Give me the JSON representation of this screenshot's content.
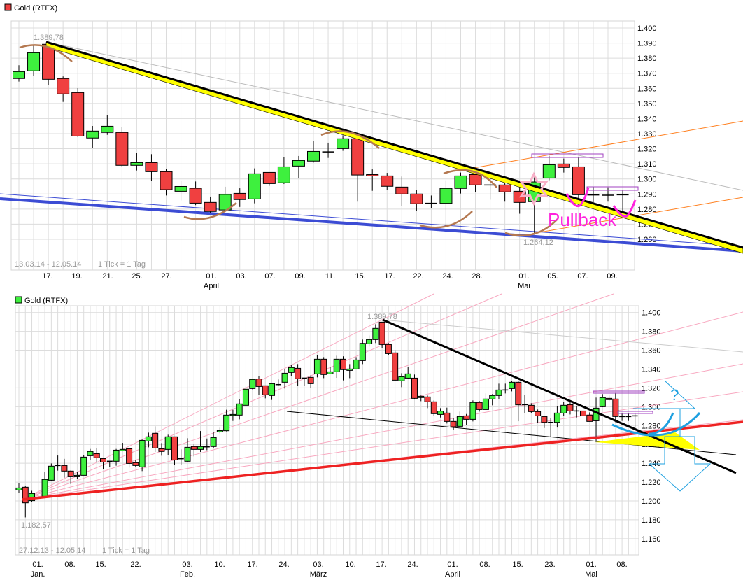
{
  "chart_data": [
    {
      "type": "candlestick",
      "title": "Gold (RTFX)",
      "legend_color": "#f04040",
      "range_note": "13.03.14 - 12.05.14",
      "tick_note": "1 Tick = 1 Tag",
      "ylim": [
        1.255,
        1.405
      ],
      "yticks": [
        "1.400",
        "1.390",
        "1.380",
        "1.370",
        "1.360",
        "1.350",
        "1.340",
        "1.330",
        "1.320",
        "1.310",
        "1.300",
        "1.290",
        "1.280",
        "1.270",
        "1.260"
      ],
      "xticks": [
        "17.",
        "19.",
        "21.",
        "25.",
        "27.",
        "01.",
        "03.",
        "07.",
        "09.",
        "11.",
        "15.",
        "17.",
        "22.",
        "24.",
        "28.",
        "01.",
        "05.",
        "07.",
        "09."
      ],
      "xmonths": [
        "April",
        "Mai"
      ],
      "annotations": {
        "high": "1.389,78",
        "low": "1.264,12",
        "text": "Pullback"
      },
      "colors": {
        "up": "#3ef03e",
        "down": "#f04040",
        "trend": "#000000",
        "band": "#ffff00",
        "support": "#3c4cd4",
        "channel": "#ff7f1e",
        "arcs": "#b47850",
        "marker": "#ff22dd"
      },
      "ohlc": [
        [
          1.3665,
          1.3753,
          1.3645,
          1.3711
        ],
        [
          1.3716,
          1.3884,
          1.3682,
          1.3836
        ],
        [
          1.3892,
          1.3898,
          1.3621,
          1.366
        ],
        [
          1.3665,
          1.3679,
          1.351,
          1.3563
        ],
        [
          1.3572,
          1.3601,
          1.3278,
          1.3284
        ],
        [
          1.3271,
          1.3351,
          1.3204,
          1.3317
        ],
        [
          1.3308,
          1.3425,
          1.3292,
          1.3349
        ],
        [
          1.3308,
          1.3346,
          1.3079,
          1.309
        ],
        [
          1.309,
          1.3173,
          1.3056,
          1.3108
        ],
        [
          1.3108,
          1.3164,
          1.2986,
          1.3048
        ],
        [
          1.3048,
          1.3067,
          1.289,
          1.2929
        ],
        [
          1.2918,
          1.2988,
          1.2857,
          1.295
        ],
        [
          1.2938,
          1.2983,
          1.2826,
          1.2839
        ],
        [
          1.2844,
          1.2883,
          1.2775,
          1.2784
        ],
        [
          1.2794,
          1.2948,
          1.2782,
          1.2897
        ],
        [
          1.2904,
          1.2938,
          1.2814,
          1.2863
        ],
        [
          1.2867,
          1.307,
          1.2838,
          1.3034
        ],
        [
          1.3043,
          1.3043,
          1.2954,
          1.2969
        ],
        [
          1.2974,
          1.3147,
          1.2966,
          1.308
        ],
        [
          1.3085,
          1.3152,
          1.3003,
          1.3122
        ],
        [
          1.3118,
          1.3249,
          1.3108,
          1.3182
        ],
        [
          1.3178,
          1.324,
          1.3139,
          1.3179
        ],
        [
          1.3201,
          1.3289,
          1.3186,
          1.3266
        ],
        [
          1.3266,
          1.3282,
          1.2849,
          1.3026
        ],
        [
          1.3029,
          1.3063,
          1.2921,
          1.302
        ],
        [
          1.302,
          1.304,
          1.2929,
          1.2951
        ],
        [
          1.2946,
          1.3016,
          1.282,
          1.29
        ],
        [
          1.29,
          1.2929,
          1.2788,
          1.2835
        ],
        [
          1.2838,
          1.289,
          1.2806,
          1.2838
        ],
        [
          1.2838,
          1.2991,
          1.2682,
          1.2937
        ],
        [
          1.2937,
          1.3042,
          1.2903,
          1.302
        ],
        [
          1.3029,
          1.3073,
          1.2912,
          1.296
        ],
        [
          1.296,
          1.3023,
          1.2862,
          1.296
        ],
        [
          1.296,
          1.298,
          1.2849,
          1.2914
        ],
        [
          1.2918,
          1.2949,
          1.2769,
          1.2844
        ],
        [
          1.2849,
          1.304,
          1.2641,
          1.298
        ],
        [
          1.3006,
          1.3153,
          1.2991,
          1.3094
        ],
        [
          1.3099,
          1.3135,
          1.3042,
          1.3076
        ],
        [
          1.308,
          1.314,
          1.2856,
          1.2895
        ],
        [
          1.2894,
          1.2949,
          1.2844,
          1.2894
        ],
        [
          1.2892,
          1.2944,
          1.2849,
          1.2892
        ],
        [
          1.2895,
          1.2926,
          1.2764,
          1.2895
        ]
      ]
    },
    {
      "type": "candlestick",
      "title": "Gold (RTFX)",
      "legend_color": "#3ef03e",
      "range_note": "27.12.13 - 12.05.14",
      "tick_note": "1 Tick = 1 Tag",
      "ylim": [
        1.15,
        1.41
      ],
      "yticks": [
        "1.400",
        "1.380",
        "1.360",
        "1.340",
        "1.320",
        "1.300",
        "1.280",
        "1.260",
        "1.240",
        "1.220",
        "1.200",
        "1.180",
        "1.160"
      ],
      "xticks": [
        "01.",
        "08.",
        "15.",
        "22.",
        "03.",
        "10.",
        "17.",
        "24.",
        "03.",
        "10.",
        "17.",
        "24.",
        "01.",
        "08.",
        "15.",
        "23.",
        "01.",
        "08."
      ],
      "xmonths": [
        "Jan.",
        "Feb.",
        "März",
        "April",
        "Mai"
      ],
      "annotations": {
        "high": "1.389,78",
        "low": "1.182,57",
        "question": "?"
      },
      "colors": {
        "up": "#3ef03e",
        "down": "#f04040",
        "trend": "#000000",
        "support": "#ee2222",
        "fan": "#f8a8c0",
        "arrow": "#1ea0e0",
        "band": "#ffff00"
      },
      "ohlc": [
        [
          1.2116,
          1.2193,
          1.2082,
          1.2138
        ],
        [
          1.2146,
          1.2161,
          1.1826,
          1.198
        ],
        [
          1.2003,
          1.2108,
          1.199,
          1.2079
        ],
        [
          1.2026,
          1.203,
          1.2024,
          1.2028
        ],
        [
          1.2049,
          1.2312,
          1.2032,
          1.2228
        ],
        [
          1.222,
          1.2398,
          1.221,
          1.2369
        ],
        [
          1.2376,
          1.2482,
          1.2322,
          1.2376
        ],
        [
          1.2376,
          1.2447,
          1.2247,
          1.2317
        ],
        [
          1.2317,
          1.2324,
          1.218,
          1.2257
        ],
        [
          1.2257,
          1.2312,
          1.223,
          1.2272
        ],
        [
          1.2272,
          1.249,
          1.2272,
          1.2465
        ],
        [
          1.248,
          1.2552,
          1.2435,
          1.2525
        ],
        [
          1.2502,
          1.2557,
          1.2411,
          1.2458
        ],
        [
          1.245,
          1.245,
          1.2339,
          1.2413
        ],
        [
          1.2421,
          1.2421,
          1.2359,
          1.2421
        ],
        [
          1.2421,
          1.2552,
          1.2374,
          1.2539
        ],
        [
          1.2532,
          1.2616,
          1.2527,
          1.2547
        ],
        [
          1.2554,
          1.2554,
          1.2354,
          1.2398
        ],
        [
          1.2406,
          1.2438,
          1.2361,
          1.2376
        ],
        [
          1.2361,
          1.2651,
          1.2317,
          1.2643
        ],
        [
          1.2636,
          1.2725,
          1.2569,
          1.2681
        ],
        [
          1.2718,
          1.2792,
          1.252,
          1.2562
        ],
        [
          1.2554,
          1.2614,
          1.248,
          1.2525
        ],
        [
          1.2547,
          1.2703,
          1.249,
          1.2681
        ],
        [
          1.2681,
          1.2681,
          1.2386,
          1.2435
        ],
        [
          1.2448,
          1.2547,
          1.2384,
          1.2448
        ],
        [
          1.2421,
          1.2666,
          1.2411,
          1.2569
        ],
        [
          1.2577,
          1.2606,
          1.2473,
          1.2547
        ],
        [
          1.2547,
          1.2742,
          1.252,
          1.2577
        ],
        [
          1.2574,
          1.2663,
          1.2539,
          1.2574
        ],
        [
          1.2577,
          1.2733,
          1.2562,
          1.2673
        ],
        [
          1.2733,
          1.2777,
          1.2718,
          1.2747
        ],
        [
          1.2745,
          1.2968,
          1.2738,
          1.2911
        ],
        [
          1.2908,
          1.2968,
          1.2849,
          1.2918
        ],
        [
          1.2911,
          1.3077,
          1.2866,
          1.303
        ],
        [
          1.3015,
          1.3215,
          1.301,
          1.3186
        ],
        [
          1.3193,
          1.3297,
          1.3186,
          1.329
        ],
        [
          1.3295,
          1.3327,
          1.3128,
          1.3215
        ],
        [
          1.3223,
          1.3223,
          1.3089,
          1.3126
        ],
        [
          1.3119,
          1.3252,
          1.3072,
          1.3245
        ],
        [
          1.3235,
          1.329,
          1.322,
          1.3235
        ],
        [
          1.326,
          1.3401,
          1.3193,
          1.3356
        ],
        [
          1.3364,
          1.3445,
          1.3327,
          1.3416
        ],
        [
          1.3408,
          1.3453,
          1.3223,
          1.3297
        ],
        [
          1.3304,
          1.3304,
          1.3223,
          1.3304
        ],
        [
          1.3312,
          1.3334,
          1.32,
          1.3245
        ],
        [
          1.3349,
          1.355,
          1.3312,
          1.3505
        ],
        [
          1.3505,
          1.3527,
          1.3304,
          1.3342
        ],
        [
          1.3349,
          1.3423,
          1.3349,
          1.3371
        ],
        [
          1.3371,
          1.3542,
          1.3307,
          1.3505
        ],
        [
          1.3505,
          1.3535,
          1.328,
          1.3394
        ],
        [
          1.3386,
          1.3453,
          1.3304,
          1.3401
        ],
        [
          1.3401,
          1.3527,
          1.3401,
          1.3497
        ],
        [
          1.349,
          1.3713,
          1.3453,
          1.3673
        ],
        [
          1.3668,
          1.3757,
          1.3639,
          1.3713
        ],
        [
          1.3713,
          1.3876,
          1.3676,
          1.3832
        ],
        [
          1.3898,
          1.3898,
          1.3624,
          1.3661
        ],
        [
          1.3661,
          1.3676,
          1.3549,
          1.3564
        ],
        [
          1.3572,
          1.3601,
          1.3277,
          1.3282
        ],
        [
          1.3275,
          1.3356,
          1.3208,
          1.3319
        ],
        [
          1.3304,
          1.3423,
          1.3297,
          1.3349
        ],
        [
          1.3304,
          1.3342,
          1.3082,
          1.3089
        ],
        [
          1.3097,
          1.3119,
          1.3059,
          1.3111
        ],
        [
          1.3104,
          1.3119,
          1.2985,
          1.3052
        ],
        [
          1.3052,
          1.3067,
          1.29,
          1.2926
        ],
        [
          1.2918,
          1.2985,
          1.2886,
          1.2953
        ],
        [
          1.2933,
          1.299,
          1.2822,
          1.2844
        ],
        [
          1.2844,
          1.2879,
          1.2757,
          1.2787
        ],
        [
          1.2792,
          1.2948,
          1.2784,
          1.2896
        ],
        [
          1.2903,
          1.2923,
          1.2804,
          1.2866
        ],
        [
          1.2866,
          1.3067,
          1.2844,
          1.3045
        ],
        [
          1.3045,
          1.306,
          1.2948,
          1.297
        ],
        [
          1.297,
          1.3141,
          1.297,
          1.3082
        ],
        [
          1.3082,
          1.3134,
          1.3015,
          1.3119
        ],
        [
          1.3119,
          1.3245,
          1.3082,
          1.3178
        ],
        [
          1.3178,
          1.3245,
          1.3141,
          1.3178
        ],
        [
          1.3193,
          1.3275,
          1.3163,
          1.326
        ],
        [
          1.326,
          1.3275,
          1.2846,
          1.302
        ],
        [
          1.3022,
          1.3126,
          1.2933,
          1.3022
        ],
        [
          1.3015,
          1.3037,
          1.2933,
          1.2948
        ],
        [
          1.2948,
          1.297,
          1.2829,
          1.2903
        ],
        [
          1.2896,
          1.2896,
          1.2774,
          1.2834
        ],
        [
          1.2834,
          1.2879,
          1.2681,
          1.2834
        ],
        [
          1.2834,
          1.3007,
          1.2779,
          1.2933
        ],
        [
          1.2933,
          1.3052,
          1.2903,
          1.3015
        ],
        [
          1.3022,
          1.3067,
          1.2918,
          1.2955
        ],
        [
          1.2955,
          1.3007,
          1.2886,
          1.2955
        ],
        [
          1.2955,
          1.2977,
          1.2844,
          1.2903
        ],
        [
          1.2911,
          1.294,
          1.2842,
          1.2844
        ],
        [
          1.2851,
          1.3097,
          1.2626,
          1.2985
        ],
        [
          1.3,
          1.3134,
          1.2995,
          1.3097
        ],
        [
          1.3089,
          1.3119,
          1.3059,
          1.3075
        ],
        [
          1.3082,
          1.3148,
          1.2836,
          1.2896
        ],
        [
          1.2896,
          1.2926,
          1.2849,
          1.2896
        ],
        [
          1.2896,
          1.2926,
          1.2849,
          1.2896
        ],
        [
          1.2903,
          1.293,
          1.2754,
          1.2903
        ]
      ]
    }
  ]
}
